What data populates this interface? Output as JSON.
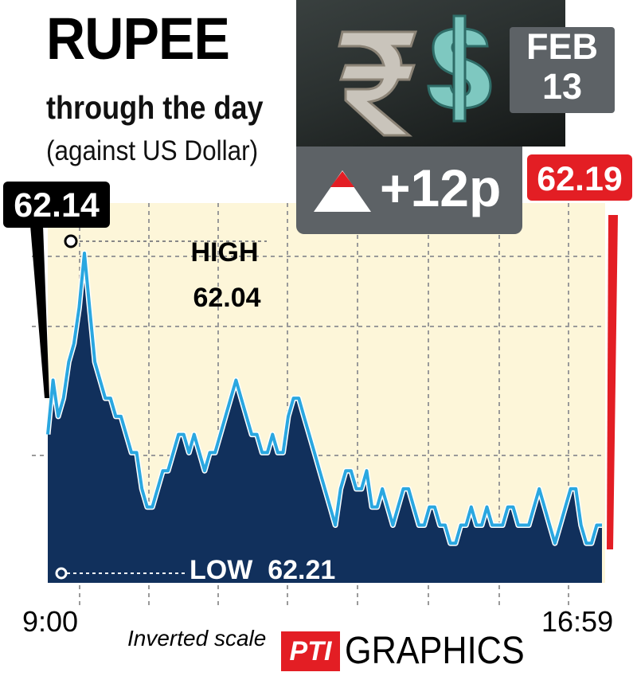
{
  "header": {
    "title": "RUPEE",
    "subtitle": "through the day",
    "subtitle2": "(against US Dollar)"
  },
  "date": {
    "month": "FEB",
    "day": "13"
  },
  "change": {
    "text": "+12p",
    "direction": "up"
  },
  "icons": [
    "rupee-symbol-icon",
    "dollar-symbol-icon",
    "up-triangle-icon",
    "pti-logo-icon"
  ],
  "colors": {
    "area_fill": "#11305c",
    "line": "#2aa7e0",
    "plot_bg": "#fdf6d9",
    "close_tag": "#e31e24",
    "open_tag": "#000000",
    "box_grey": "#5d6266"
  },
  "chart_data": {
    "type": "area",
    "title": "RUPEE through the day",
    "ylabel": "",
    "xlabel": "",
    "y_inverted": true,
    "ylim": [
      62.04,
      62.21
    ],
    "x_ticks": [
      "9:00",
      "16:59"
    ],
    "open": {
      "value": 62.14,
      "label": "62.14"
    },
    "close": {
      "value": 62.19,
      "label": "62.19"
    },
    "high": {
      "value": 62.04,
      "label_top": "HIGH",
      "label_bottom": "62.04"
    },
    "low": {
      "value": 62.21,
      "label": "LOW  62.21"
    },
    "scale_note": "Inverted scale",
    "grid": true,
    "series": [
      {
        "values": [
          62.14,
          62.11,
          62.13,
          62.12,
          62.1,
          62.09,
          62.07,
          62.04,
          62.07,
          62.1,
          62.11,
          62.12,
          62.12,
          62.13,
          62.13,
          62.14,
          62.15,
          62.15,
          62.17,
          62.18,
          62.18,
          62.17,
          62.16,
          62.16,
          62.15,
          62.14,
          62.14,
          62.15,
          62.14,
          62.15,
          62.16,
          62.15,
          62.15,
          62.14,
          62.13,
          62.12,
          62.11,
          62.12,
          62.13,
          62.14,
          62.14,
          62.15,
          62.15,
          62.14,
          62.15,
          62.15,
          62.13,
          62.12,
          62.12,
          62.13,
          62.14,
          62.15,
          62.16,
          62.17,
          62.18,
          62.19,
          62.17,
          62.16,
          62.16,
          62.17,
          62.17,
          62.16,
          62.18,
          62.18,
          62.17,
          62.18,
          62.19,
          62.18,
          62.17,
          62.17,
          62.18,
          62.19,
          62.19,
          62.18,
          62.18,
          62.19,
          62.19,
          62.2,
          62.2,
          62.19,
          62.19,
          62.18,
          62.19,
          62.19,
          62.18,
          62.19,
          62.19,
          62.19,
          62.18,
          62.18,
          62.19,
          62.19,
          62.19,
          62.18,
          62.17,
          62.18,
          62.19,
          62.2,
          62.19,
          62.18,
          62.17,
          62.17,
          62.19,
          62.2,
          62.2,
          62.19,
          62.19
        ]
      }
    ]
  },
  "footer": {
    "start_time": "9:00",
    "end_time": "16:59",
    "credit_logo": "PTI",
    "credit_text": "GRAPHICS"
  }
}
